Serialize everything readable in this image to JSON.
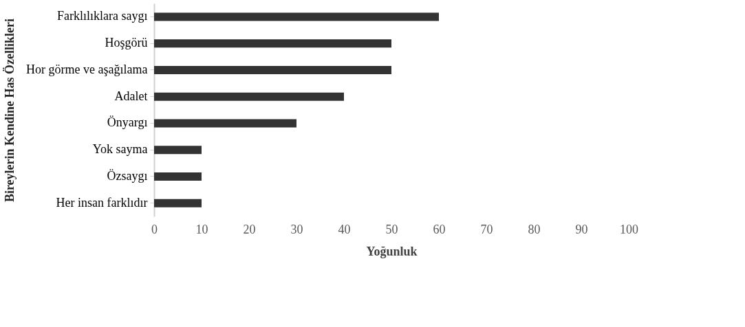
{
  "chart_data": {
    "type": "bar",
    "orientation": "horizontal",
    "xlabel": "Yoğunluk",
    "ylabel": "Bireylerin Kendine Has Özellikleri",
    "categories": [
      "Farklılıklara saygı",
      "Hoşgörü",
      "Hor görme ve aşağılama",
      "Adalet",
      "Önyargı",
      "Yok sayma",
      "Özsaygı",
      "Her insan farklıdır"
    ],
    "values": [
      60,
      50,
      50,
      40,
      30,
      10,
      10,
      10
    ],
    "color": "#333333",
    "xlim": [
      0,
      100
    ],
    "xticks": [
      0,
      10,
      20,
      30,
      40,
      50,
      60,
      70,
      80,
      90,
      100
    ],
    "grid": false
  }
}
